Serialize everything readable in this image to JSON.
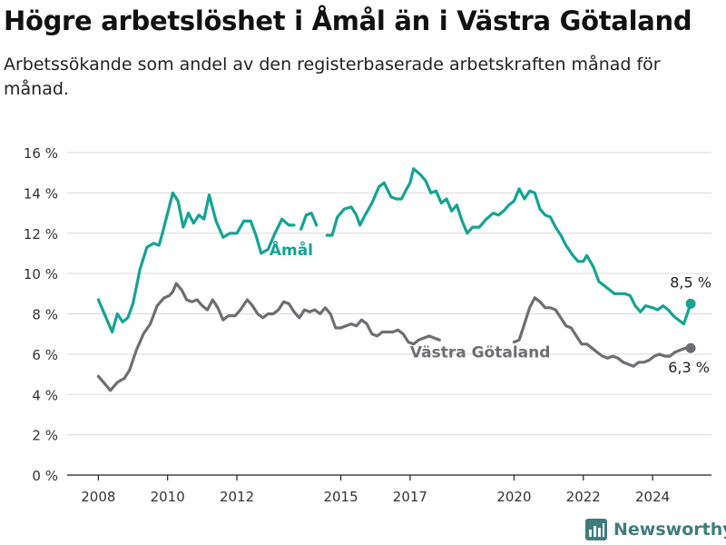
{
  "title": "Högre arbetslöshet i Åmål än i Västra Götaland",
  "subtitle": "Arbetssökande som andel av den registerbaserade arbetskraften månad för månad.",
  "brand": "Newsworthy",
  "colors": {
    "amal": "#14a394",
    "vg": "#6e6e73",
    "brand": "#3f7d7a",
    "grid": "#d9d9d9"
  },
  "chart_data": {
    "type": "line",
    "title": "",
    "xlabel": "",
    "ylabel": "",
    "x_ticks": [
      2008,
      2010,
      2012,
      2015,
      2017,
      2020,
      2022,
      2024
    ],
    "y_ticks": [
      0,
      2,
      4,
      6,
      8,
      10,
      12,
      14,
      16
    ],
    "y_tick_labels": [
      "0 %",
      "2 %",
      "4 %",
      "6 %",
      "8 %",
      "10 %",
      "12 %",
      "14 %",
      "16 %"
    ],
    "ylim": [
      0,
      16
    ],
    "xlim": [
      2007.1,
      2025.7
    ],
    "grid": "horizontal",
    "series": [
      {
        "name": "Åmål",
        "key": "amal",
        "end_label": "8,5 %",
        "points": [
          [
            2008.0,
            8.7
          ],
          [
            2008.2,
            7.9
          ],
          [
            2008.4,
            7.1
          ],
          [
            2008.55,
            8.0
          ],
          [
            2008.7,
            7.6
          ],
          [
            2008.85,
            7.8
          ],
          [
            2009.0,
            8.5
          ],
          [
            2009.2,
            10.2
          ],
          [
            2009.4,
            11.3
          ],
          [
            2009.6,
            11.5
          ],
          [
            2009.75,
            11.4
          ],
          [
            2009.85,
            12.0
          ],
          [
            2010.0,
            13.0
          ],
          [
            2010.15,
            14.0
          ],
          [
            2010.3,
            13.6
          ],
          [
            2010.45,
            12.3
          ],
          [
            2010.6,
            13.0
          ],
          [
            2010.75,
            12.5
          ],
          [
            2010.9,
            12.9
          ],
          [
            2011.05,
            12.7
          ],
          [
            2011.2,
            13.9
          ],
          [
            2011.4,
            12.6
          ],
          [
            2011.6,
            11.8
          ],
          [
            2011.8,
            12.0
          ],
          [
            2012.0,
            12.0
          ],
          [
            2012.2,
            12.6
          ],
          [
            2012.4,
            12.6
          ],
          [
            2012.55,
            11.9
          ],
          [
            2012.7,
            11.0
          ],
          [
            2012.9,
            11.2
          ],
          [
            2013.1,
            12.0
          ],
          [
            2013.3,
            12.7
          ],
          [
            2013.5,
            12.4
          ],
          [
            2013.65,
            12.4
          ],
          null,
          [
            2013.85,
            12.2
          ],
          [
            2014.0,
            12.9
          ],
          [
            2014.15,
            13.0
          ],
          [
            2014.3,
            12.4
          ],
          null,
          [
            2014.6,
            11.9
          ],
          [
            2014.75,
            11.9
          ],
          [
            2014.9,
            12.8
          ],
          [
            2015.1,
            13.2
          ],
          [
            2015.3,
            13.3
          ],
          [
            2015.45,
            12.9
          ],
          [
            2015.55,
            12.4
          ],
          [
            2015.7,
            12.9
          ],
          [
            2015.9,
            13.5
          ],
          [
            2016.1,
            14.3
          ],
          [
            2016.25,
            14.5
          ],
          [
            2016.45,
            13.8
          ],
          [
            2016.6,
            13.7
          ],
          [
            2016.75,
            13.7
          ],
          [
            2016.9,
            14.2
          ],
          [
            2017.0,
            14.5
          ],
          [
            2017.1,
            15.2
          ],
          [
            2017.3,
            14.9
          ],
          [
            2017.45,
            14.6
          ],
          [
            2017.6,
            14.0
          ],
          [
            2017.75,
            14.1
          ],
          [
            2017.9,
            13.5
          ],
          [
            2018.05,
            13.7
          ],
          [
            2018.2,
            13.1
          ],
          [
            2018.35,
            13.4
          ],
          [
            2018.5,
            12.6
          ],
          [
            2018.65,
            12.0
          ],
          [
            2018.8,
            12.3
          ],
          [
            2019.0,
            12.3
          ],
          [
            2019.2,
            12.7
          ],
          [
            2019.4,
            13.0
          ],
          [
            2019.55,
            12.9
          ],
          [
            2019.7,
            13.1
          ],
          [
            2019.85,
            13.4
          ],
          [
            2020.0,
            13.6
          ],
          [
            2020.15,
            14.2
          ],
          [
            2020.3,
            13.7
          ],
          [
            2020.45,
            14.1
          ],
          [
            2020.6,
            14.0
          ],
          [
            2020.75,
            13.2
          ],
          [
            2020.9,
            12.9
          ],
          [
            2021.05,
            12.8
          ],
          [
            2021.2,
            12.3
          ],
          [
            2021.35,
            11.9
          ],
          [
            2021.5,
            11.4
          ],
          [
            2021.7,
            10.9
          ],
          [
            2021.85,
            10.6
          ],
          [
            2022.0,
            10.6
          ],
          [
            2022.1,
            10.9
          ],
          [
            2022.3,
            10.3
          ],
          [
            2022.45,
            9.6
          ],
          [
            2022.6,
            9.4
          ],
          [
            2022.75,
            9.2
          ],
          [
            2022.9,
            9.0
          ],
          [
            2023.05,
            9.0
          ],
          [
            2023.2,
            9.0
          ],
          [
            2023.35,
            8.9
          ],
          [
            2023.5,
            8.4
          ],
          [
            2023.65,
            8.1
          ],
          [
            2023.8,
            8.4
          ],
          [
            2024.0,
            8.3
          ],
          [
            2024.15,
            8.2
          ],
          [
            2024.3,
            8.4
          ],
          [
            2024.45,
            8.2
          ],
          [
            2024.6,
            7.9
          ],
          [
            2024.75,
            7.7
          ],
          [
            2024.9,
            7.5
          ],
          [
            2025.0,
            8.0
          ],
          [
            2025.1,
            8.5
          ]
        ]
      },
      {
        "name": "Västra Götaland",
        "key": "vg",
        "end_label": "6,3 %",
        "points": [
          [
            2008.0,
            4.9
          ],
          [
            2008.15,
            4.6
          ],
          [
            2008.35,
            4.2
          ],
          [
            2008.55,
            4.6
          ],
          [
            2008.75,
            4.8
          ],
          [
            2008.9,
            5.2
          ],
          [
            2009.1,
            6.2
          ],
          [
            2009.3,
            7.0
          ],
          [
            2009.5,
            7.5
          ],
          [
            2009.7,
            8.4
          ],
          [
            2009.9,
            8.8
          ],
          [
            2010.05,
            8.9
          ],
          [
            2010.15,
            9.1
          ],
          [
            2010.25,
            9.5
          ],
          [
            2010.4,
            9.2
          ],
          [
            2010.55,
            8.7
          ],
          [
            2010.7,
            8.6
          ],
          [
            2010.85,
            8.7
          ],
          [
            2011.0,
            8.4
          ],
          [
            2011.15,
            8.2
          ],
          [
            2011.3,
            8.7
          ],
          [
            2011.45,
            8.3
          ],
          [
            2011.6,
            7.7
          ],
          [
            2011.75,
            7.9
          ],
          [
            2011.95,
            7.9
          ],
          [
            2012.1,
            8.2
          ],
          [
            2012.3,
            8.7
          ],
          [
            2012.45,
            8.4
          ],
          [
            2012.6,
            8.0
          ],
          [
            2012.75,
            7.8
          ],
          [
            2012.9,
            8.0
          ],
          [
            2013.05,
            8.0
          ],
          [
            2013.2,
            8.2
          ],
          [
            2013.35,
            8.6
          ],
          [
            2013.5,
            8.5
          ],
          [
            2013.65,
            8.1
          ],
          [
            2013.8,
            7.8
          ],
          [
            2013.95,
            8.2
          ],
          [
            2014.1,
            8.1
          ],
          [
            2014.25,
            8.2
          ],
          [
            2014.4,
            8.0
          ],
          [
            2014.55,
            8.3
          ],
          [
            2014.7,
            8.0
          ],
          [
            2014.85,
            7.3
          ],
          [
            2015.0,
            7.3
          ],
          [
            2015.15,
            7.4
          ],
          [
            2015.3,
            7.5
          ],
          [
            2015.45,
            7.4
          ],
          [
            2015.6,
            7.7
          ],
          [
            2015.75,
            7.5
          ],
          [
            2015.9,
            7.0
          ],
          [
            2016.05,
            6.9
          ],
          [
            2016.2,
            7.1
          ],
          [
            2016.35,
            7.1
          ],
          [
            2016.5,
            7.1
          ],
          [
            2016.65,
            7.2
          ],
          [
            2016.8,
            7.0
          ],
          [
            2016.95,
            6.6
          ],
          [
            2017.1,
            6.5
          ],
          [
            2017.25,
            6.7
          ],
          [
            2017.4,
            6.8
          ],
          [
            2017.55,
            6.9
          ],
          [
            2017.7,
            6.8
          ],
          [
            2017.85,
            6.7
          ],
          null,
          [
            2020.0,
            6.6
          ],
          [
            2020.15,
            6.7
          ],
          [
            2020.3,
            7.5
          ],
          [
            2020.45,
            8.3
          ],
          [
            2020.6,
            8.8
          ],
          [
            2020.75,
            8.6
          ],
          [
            2020.9,
            8.3
          ],
          [
            2021.05,
            8.3
          ],
          [
            2021.2,
            8.2
          ],
          [
            2021.35,
            7.8
          ],
          [
            2021.5,
            7.4
          ],
          [
            2021.65,
            7.3
          ],
          [
            2021.8,
            6.9
          ],
          [
            2021.95,
            6.5
          ],
          [
            2022.1,
            6.5
          ],
          [
            2022.25,
            6.3
          ],
          [
            2022.4,
            6.1
          ],
          [
            2022.55,
            5.9
          ],
          [
            2022.7,
            5.8
          ],
          [
            2022.85,
            5.9
          ],
          [
            2023.0,
            5.8
          ],
          [
            2023.15,
            5.6
          ],
          [
            2023.3,
            5.5
          ],
          [
            2023.45,
            5.4
          ],
          [
            2023.6,
            5.6
          ],
          [
            2023.75,
            5.6
          ],
          [
            2023.9,
            5.7
          ],
          [
            2024.05,
            5.9
          ],
          [
            2024.2,
            6.0
          ],
          [
            2024.35,
            5.9
          ],
          [
            2024.5,
            5.9
          ],
          [
            2024.65,
            6.1
          ],
          [
            2024.8,
            6.2
          ],
          [
            2024.95,
            6.3
          ],
          [
            2025.1,
            6.3
          ]
        ]
      }
    ],
    "annotations": [
      {
        "text": "Åmål",
        "series": "amal"
      },
      {
        "text": "Västra Götaland",
        "series": "vg"
      }
    ]
  }
}
